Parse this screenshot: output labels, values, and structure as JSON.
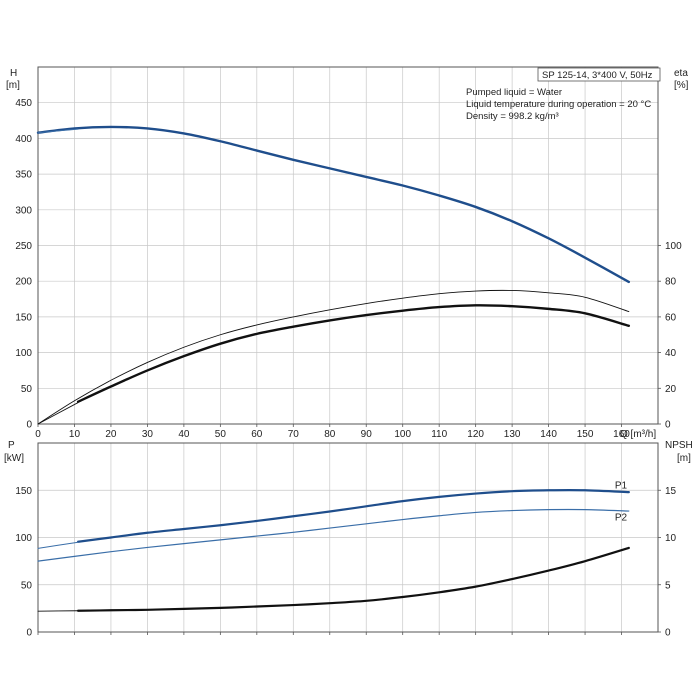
{
  "colors": {
    "blue": "#1f4e8c",
    "blue_light": "#3a6ea8",
    "black": "#111111",
    "grid": "#c8c8c8",
    "frame": "#555555"
  },
  "info": {
    "title": "SP 125-14, 3*400 V, 50Hz",
    "lines": [
      "Pumped liquid = Water",
      "Liquid temperature during operation = 20 °C",
      "Density = 998.2 kg/m³"
    ]
  },
  "chart_data": [
    {
      "type": "line",
      "panel": "top",
      "x_unit_label": "Q [m³/h]",
      "ylabel_left": [
        "H",
        "[m]"
      ],
      "ylabel_right": [
        "eta",
        "[%]"
      ],
      "xlim": [
        0,
        170
      ],
      "ylim_left": [
        0,
        500
      ],
      "ylim_right": [
        0,
        200
      ],
      "x_ticks": [
        0,
        10,
        20,
        30,
        40,
        50,
        60,
        70,
        80,
        90,
        100,
        110,
        120,
        130,
        140,
        150,
        160
      ],
      "left_ticks": [
        0,
        50,
        100,
        150,
        200,
        250,
        300,
        350,
        400,
        450
      ],
      "right_ticks": [
        0,
        20,
        40,
        60,
        80,
        100
      ],
      "grid": true,
      "series": [
        {
          "axis": "left",
          "color": "blue",
          "width": 2.4,
          "x": [
            0,
            10,
            20,
            30,
            40,
            50,
            60,
            70,
            80,
            90,
            100,
            110,
            120,
            130,
            140,
            150,
            162
          ],
          "y": [
            408,
            414,
            416,
            414,
            407,
            396,
            383,
            370,
            358,
            346,
            334,
            320,
            304,
            284,
            260,
            233,
            199
          ]
        },
        {
          "axis": "left",
          "color": "blue_light",
          "width": 1.0,
          "x": [
            0,
            11
          ],
          "y": [
            408,
            413
          ]
        },
        {
          "axis": "right",
          "color": "black",
          "width": 0.9,
          "x": [
            0,
            10,
            20,
            30,
            40,
            50,
            60,
            70,
            80,
            90,
            100,
            110,
            120,
            130,
            140,
            150,
            162
          ],
          "y": [
            0,
            13,
            24.5,
            34.5,
            43,
            50,
            55.5,
            60,
            64,
            67.5,
            70.5,
            73,
            74.5,
            74.8,
            73.5,
            71,
            63
          ]
        },
        {
          "axis": "right",
          "color": "black",
          "width": 2.4,
          "x": [
            11,
            20,
            30,
            40,
            50,
            60,
            70,
            80,
            90,
            100,
            110,
            120,
            130,
            140,
            150,
            162
          ],
          "y": [
            12.5,
            21,
            30,
            38,
            45,
            50.5,
            54.5,
            58,
            61,
            63.5,
            65.5,
            66.5,
            66,
            64.5,
            62,
            55
          ]
        },
        {
          "axis": "right",
          "color": "black",
          "width": 0.9,
          "x": [
            0,
            11
          ],
          "y": [
            0,
            12
          ]
        }
      ]
    },
    {
      "type": "line",
      "panel": "bottom",
      "ylabel_left": [
        "P",
        "[kW]"
      ],
      "ylabel_right": [
        "NPSH",
        "[m]"
      ],
      "xlim": [
        0,
        170
      ],
      "ylim_left": [
        0,
        200
      ],
      "ylim_right": [
        0,
        20
      ],
      "x_ticks": [
        0,
        10,
        20,
        30,
        40,
        50,
        60,
        70,
        80,
        90,
        100,
        110,
        120,
        130,
        140,
        150,
        160
      ],
      "left_ticks": [
        0,
        50,
        100,
        150
      ],
      "right_ticks": [
        0,
        5,
        10,
        15
      ],
      "grid": true,
      "series": [
        {
          "name": "P1",
          "axis": "left",
          "color": "blue",
          "width": 2.2,
          "x": [
            11,
            20,
            30,
            40,
            50,
            60,
            70,
            80,
            90,
            100,
            110,
            120,
            130,
            140,
            150,
            162
          ],
          "y": [
            95.5,
            100,
            105,
            109,
            113,
            117.5,
            122.5,
            127.5,
            133,
            138.5,
            143,
            146.5,
            149,
            150,
            150,
            148
          ]
        },
        {
          "axis": "left",
          "color": "blue_light",
          "width": 1.0,
          "x": [
            0,
            11
          ],
          "y": [
            88.5,
            95
          ]
        },
        {
          "name": "P2",
          "axis": "left",
          "color": "blue_light",
          "width": 1.2,
          "x": [
            0,
            10,
            20,
            30,
            40,
            50,
            60,
            70,
            80,
            90,
            100,
            110,
            120,
            130,
            140,
            150,
            162
          ],
          "y": [
            75,
            80,
            85,
            89.5,
            93.5,
            97.5,
            101.5,
            105.5,
            110,
            114.5,
            119,
            123,
            126.5,
            128.5,
            129.5,
            129.5,
            128
          ]
        },
        {
          "axis": "right",
          "color": "black",
          "width": 2.2,
          "x": [
            11,
            20,
            30,
            40,
            50,
            60,
            70,
            80,
            90,
            100,
            110,
            120,
            130,
            140,
            150,
            162
          ],
          "y": [
            2.25,
            2.3,
            2.35,
            2.45,
            2.55,
            2.7,
            2.85,
            3.05,
            3.3,
            3.7,
            4.2,
            4.8,
            5.6,
            6.5,
            7.5,
            8.9
          ]
        },
        {
          "axis": "right",
          "color": "black",
          "width": 0.9,
          "x": [
            0,
            11
          ],
          "y": [
            2.2,
            2.25
          ]
        }
      ],
      "curve_labels": [
        {
          "text": "P1",
          "x": 162,
          "y": 150
        },
        {
          "text": "P2",
          "x": 162,
          "y": 130.5
        }
      ]
    }
  ]
}
